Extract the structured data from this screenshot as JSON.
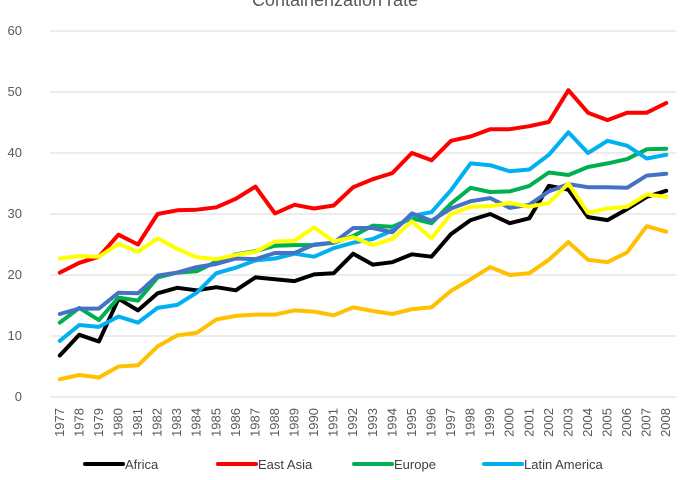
{
  "chart_data": {
    "type": "line",
    "title": "Containerization rate",
    "xlabel": "",
    "ylabel": "",
    "ylim": [
      0,
      60
    ],
    "yticks": [
      0,
      10,
      20,
      30,
      40,
      50,
      60
    ],
    "grid": true,
    "legend_position": "bottom",
    "categories": [
      "1977",
      "1978",
      "1979",
      "1980",
      "1981",
      "1982",
      "1983",
      "1984",
      "1985",
      "1986",
      "1987",
      "1988",
      "1989",
      "1990",
      "1991",
      "1992",
      "1993",
      "1994",
      "1995",
      "1996",
      "1997",
      "1998",
      "1999",
      "2000",
      "2001",
      "2002",
      "2003",
      "2004",
      "2005",
      "2006",
      "2007",
      "2008"
    ],
    "series": [
      {
        "name": "Africa",
        "color": "#000000",
        "show_in_legend": true,
        "values": [
          6.8,
          10.2,
          9.1,
          16.1,
          14.2,
          17.0,
          17.9,
          17.5,
          18.0,
          17.5,
          19.6,
          19.3,
          19.0,
          20.1,
          20.3,
          23.5,
          21.7,
          22.1,
          23.4,
          23.0,
          26.7,
          29.0,
          30.0,
          28.5,
          29.3,
          34.6,
          34.0,
          29.5,
          29.0,
          30.8,
          32.8,
          33.8
        ]
      },
      {
        "name": "East Asia",
        "color": "#ff0000",
        "show_in_legend": true,
        "values": [
          20.4,
          22.0,
          23.0,
          26.6,
          25.0,
          30.0,
          30.6,
          30.7,
          31.1,
          32.5,
          34.5,
          30.1,
          31.5,
          30.9,
          31.4,
          34.4,
          35.7,
          36.7,
          40.0,
          38.8,
          42.0,
          42.7,
          43.9,
          43.9,
          44.4,
          45.1,
          50.3,
          46.6,
          45.4,
          46.6,
          46.6,
          48.2
        ]
      },
      {
        "name": "Europe",
        "color": "#00b050",
        "show_in_legend": true,
        "values": [
          12.2,
          14.6,
          12.6,
          16.3,
          15.8,
          19.6,
          20.4,
          20.6,
          22.2,
          23.4,
          23.9,
          24.8,
          24.9,
          24.9,
          25.3,
          26.4,
          28.1,
          27.9,
          29.3,
          28.5,
          31.7,
          34.3,
          33.6,
          33.7,
          34.6,
          36.8,
          36.4,
          37.7,
          38.3,
          39.0,
          40.6,
          40.7
        ]
      },
      {
        "name": "Latin America",
        "color": "#00b0f0",
        "show_in_legend": true,
        "values": [
          9.2,
          11.8,
          11.5,
          13.2,
          12.2,
          14.6,
          15.1,
          17.1,
          20.3,
          21.2,
          22.4,
          22.7,
          23.5,
          23.0,
          24.4,
          25.3,
          25.9,
          27.3,
          29.7,
          30.3,
          33.9,
          38.3,
          38.0,
          37.0,
          37.3,
          39.7,
          43.4,
          40.0,
          42.0,
          41.2,
          39.1,
          39.7
        ]
      },
      {
        "name": "",
        "color": "#ffc000",
        "show_in_legend": false,
        "values": [
          2.9,
          3.6,
          3.2,
          5.0,
          5.2,
          8.3,
          10.1,
          10.5,
          12.7,
          13.3,
          13.5,
          13.5,
          14.2,
          14.0,
          13.4,
          14.7,
          14.1,
          13.6,
          14.4,
          14.7,
          17.4,
          19.3,
          21.3,
          20.0,
          20.3,
          22.5,
          25.4,
          22.5,
          22.1,
          23.7,
          28.0,
          27.1
        ]
      },
      {
        "name": "",
        "color": "#4472c4",
        "show_in_legend": false,
        "values": [
          13.6,
          14.5,
          14.5,
          17.1,
          17.0,
          19.9,
          20.4,
          21.3,
          21.8,
          22.7,
          22.6,
          23.6,
          23.6,
          25.0,
          25.3,
          27.7,
          27.7,
          27.0,
          30.1,
          28.9,
          30.9,
          32.1,
          32.6,
          31.0,
          31.5,
          33.7,
          34.9,
          34.4,
          34.4,
          34.3,
          36.3,
          36.6
        ]
      },
      {
        "name": "",
        "color": "#ffff00",
        "show_in_legend": false,
        "values": [
          22.7,
          23.1,
          23.0,
          25.1,
          23.8,
          26.0,
          24.3,
          22.9,
          22.6,
          23.3,
          23.8,
          25.5,
          25.6,
          27.8,
          25.5,
          26.2,
          24.9,
          25.9,
          28.8,
          26.0,
          30.0,
          31.2,
          31.3,
          31.8,
          31.2,
          31.8,
          35.0,
          30.2,
          30.9,
          31.2,
          33.2,
          32.8
        ]
      }
    ]
  }
}
